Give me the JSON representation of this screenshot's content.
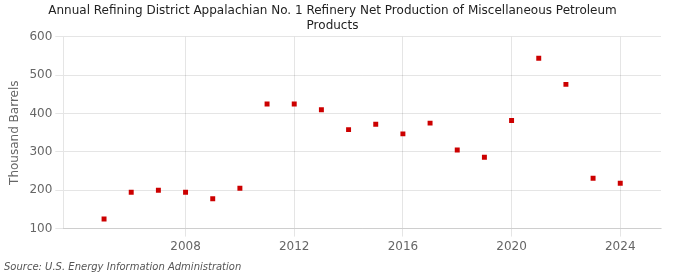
{
  "chart_data": {
    "type": "scatter",
    "title": "Annual Refining District Appalachian No. 1 Refinery Net Production of Miscellaneous Petroleum\nProducts",
    "ylabel": "Thousand Barrels",
    "annotation": "Source: U.S. Energy Information Administration",
    "x": [
      2005,
      2006,
      2007,
      2008,
      2009,
      2010,
      2011,
      2012,
      2013,
      2014,
      2015,
      2016,
      2017,
      2018,
      2019,
      2020,
      2021,
      2022,
      2023,
      2024
    ],
    "values": [
      125,
      195,
      200,
      195,
      178,
      205,
      425,
      425,
      410,
      358,
      372,
      347,
      375,
      305,
      286,
      382,
      544,
      476,
      231,
      218
    ],
    "color": "#cc0000",
    "marker": "square",
    "xlim": [
      2003.5,
      2025.5
    ],
    "xticks": [
      2008,
      2012,
      2016,
      2020,
      2024
    ],
    "ylim": [
      100,
      600
    ],
    "yticks": [
      100,
      200,
      300,
      400,
      500,
      600
    ],
    "grid": true
  }
}
